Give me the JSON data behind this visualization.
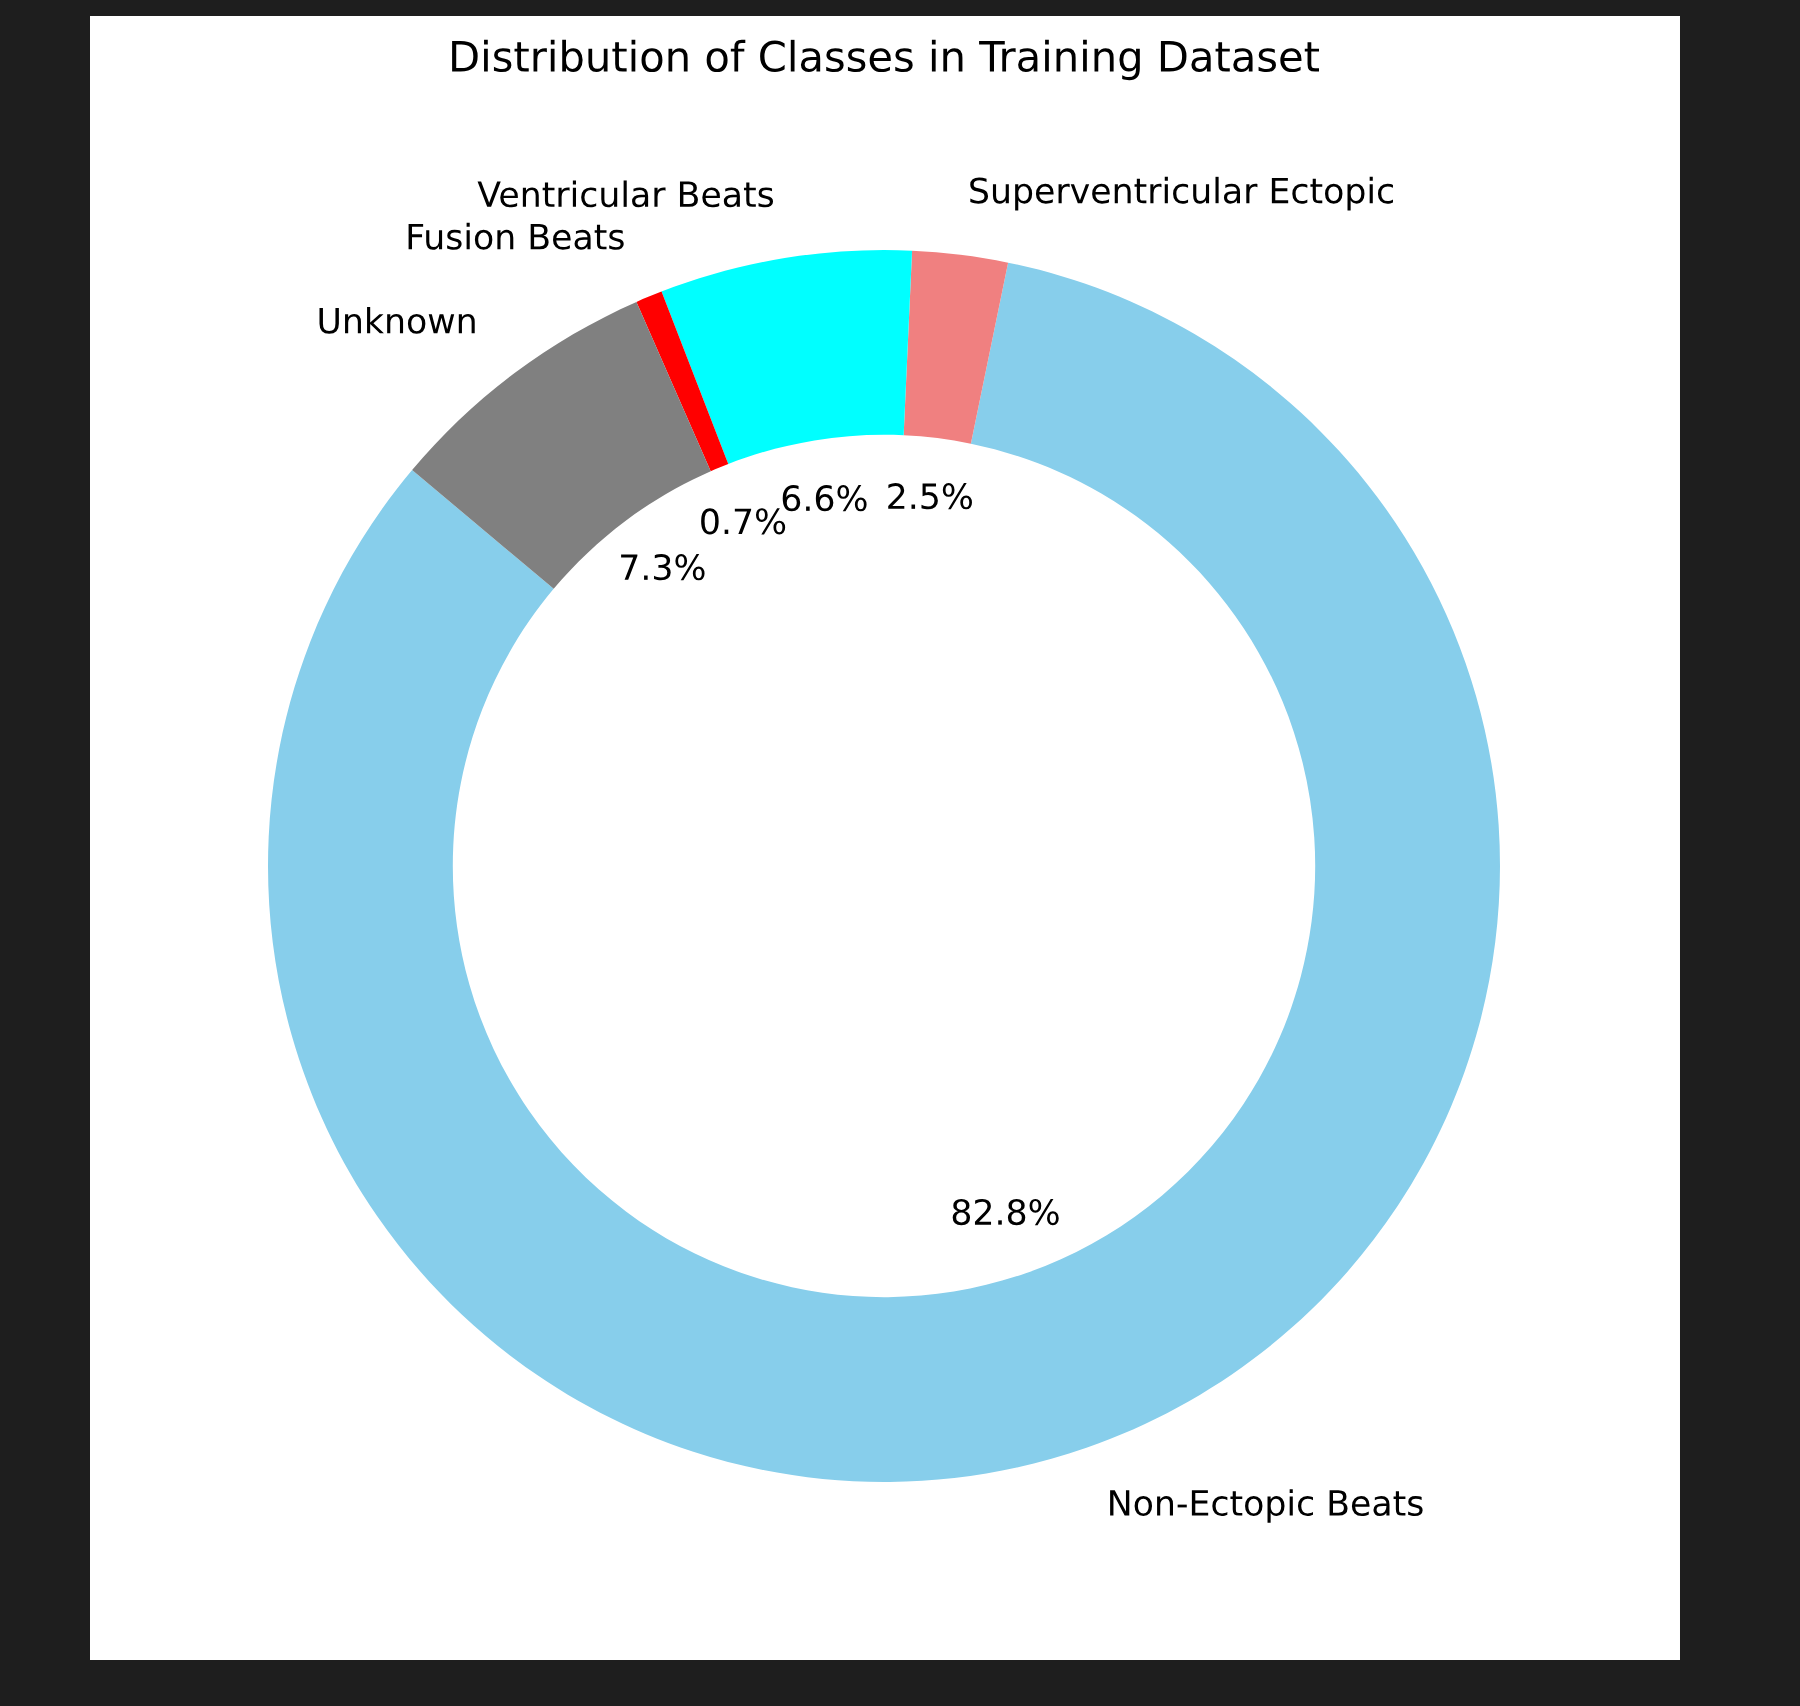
{
  "chart_data": {
    "type": "donut",
    "title": "Distribution of Classes in Training Dataset",
    "categories": [
      "Non-Ectopic Beats",
      "Superventricular Ectopic",
      "Ventricular Beats",
      "Fusion Beats",
      "Unknown"
    ],
    "values": [
      82.8,
      2.5,
      6.6,
      0.7,
      7.3
    ],
    "colors": [
      "#87ceeb",
      "#f08080",
      "#00ffff",
      "#ff0000",
      "#808080"
    ],
    "value_labels": [
      "82.8%",
      "2.5%",
      "6.6%",
      "0.7%",
      "7.3%"
    ]
  }
}
